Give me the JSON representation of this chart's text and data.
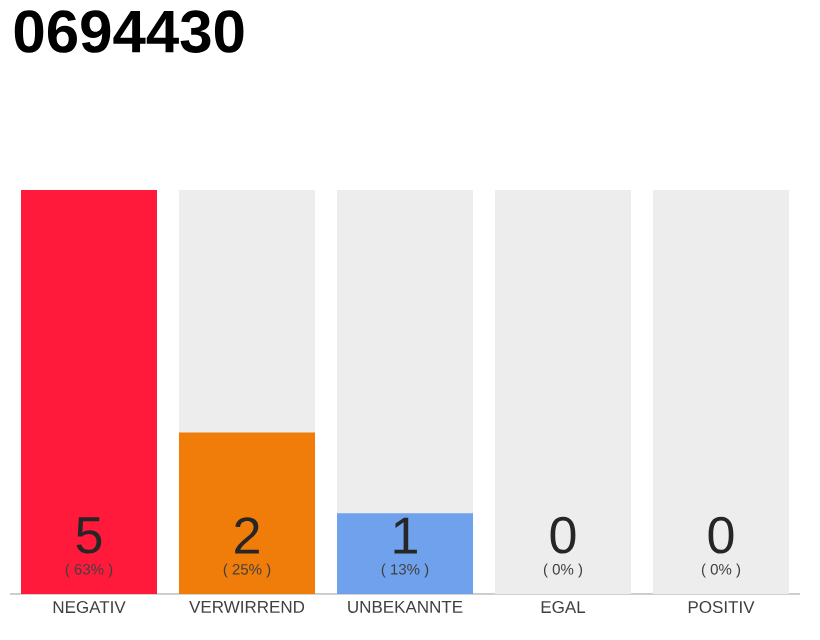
{
  "chart_data": {
    "type": "bar",
    "title": "0694430",
    "categories": [
      "NEGATIV",
      "VERWIRREND",
      "UNBEKANNTE",
      "EGAL",
      "POSITIV"
    ],
    "series": [
      {
        "color": "#ededed",
        "values": [
          null,
          5,
          5,
          5,
          5
        ]
      },
      {
        "colors": [
          "#ff1a3c",
          "#f07d0a",
          "#6fa1ec",
          "#bbbbbb",
          "#bbbbbb"
        ],
        "values": [
          5,
          2,
          1,
          0,
          0
        ],
        "value_labels": [
          "5",
          "2",
          "1",
          "0",
          "0"
        ]
      }
    ],
    "annotations": [
      "( 63% )",
      "( 25% )",
      "( 13% )",
      "( 0% )",
      "( 0% )"
    ],
    "ylim": [
      0,
      5
    ],
    "tick_labels": "x"
  }
}
